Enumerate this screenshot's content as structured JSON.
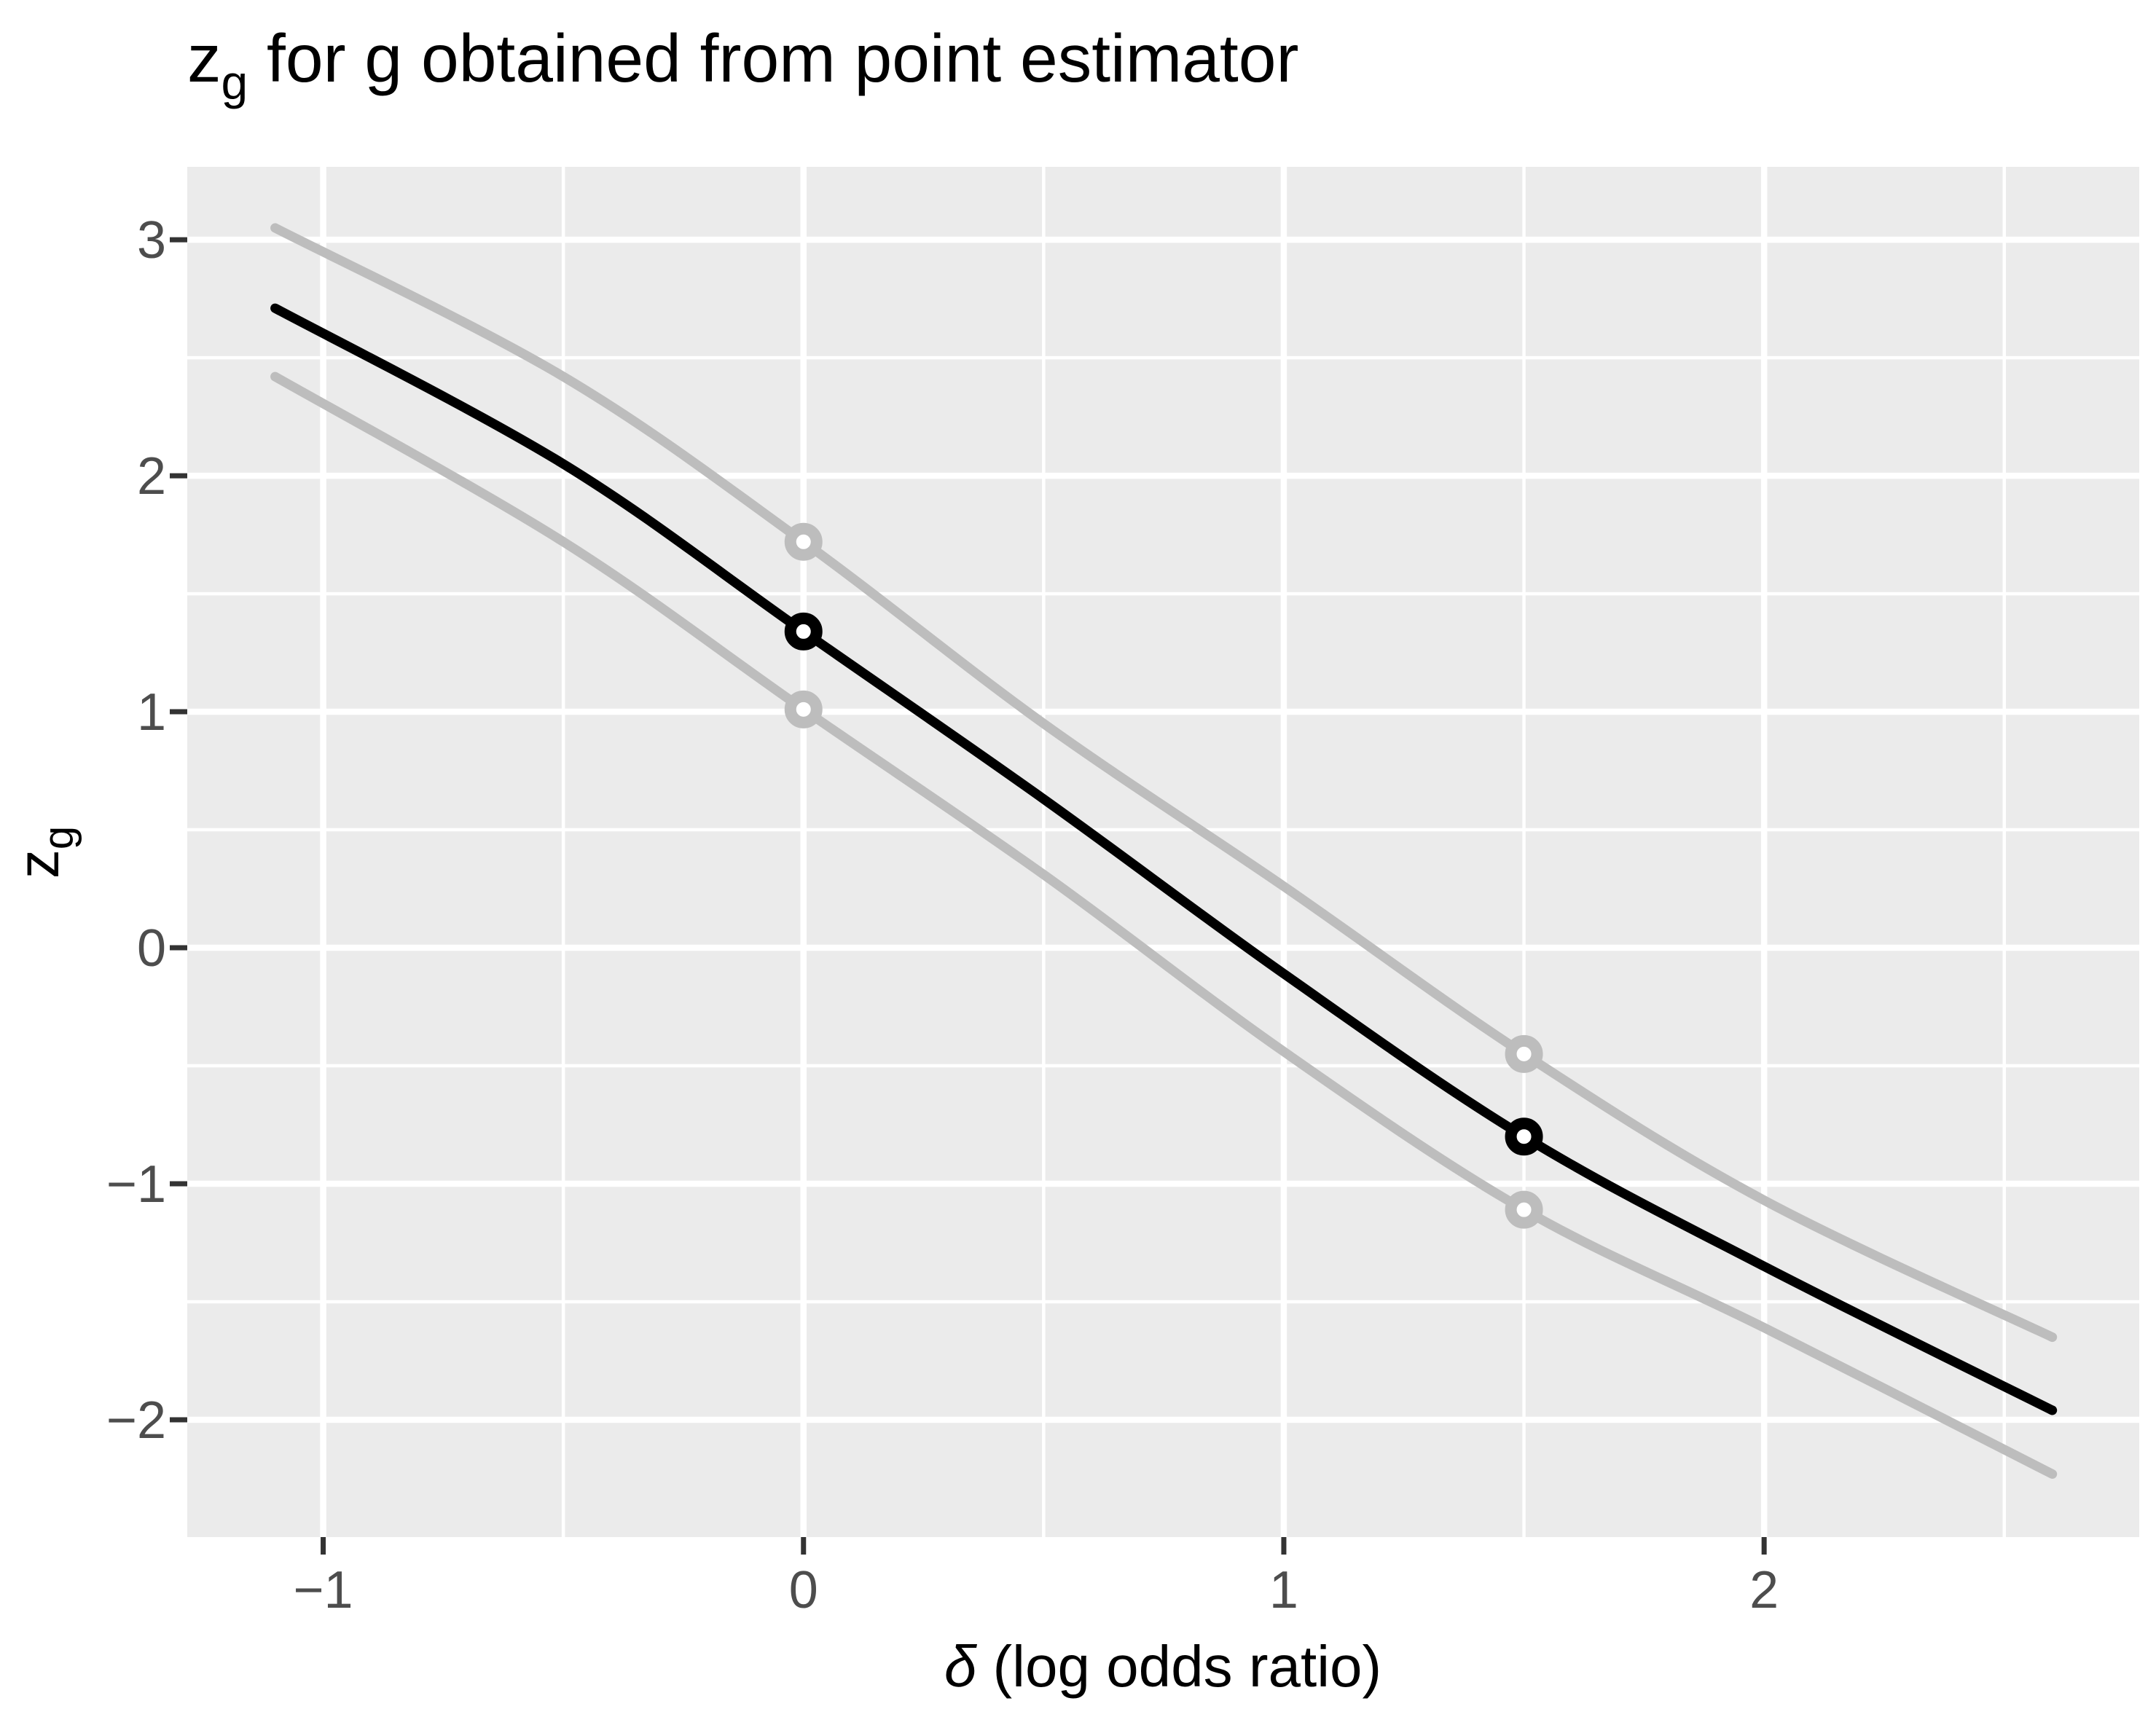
{
  "labels": {
    "title_base": "z",
    "title_sub": "g",
    "title_rest": " for g obtained from point estimator",
    "ylabel_base": "z",
    "ylabel_sub": "g",
    "xlabel_delta": "δ",
    "xlabel_rest": " (log odds ratio)"
  },
  "chart_data": {
    "type": "line",
    "title": "z_g for g obtained from point estimator",
    "xlabel": "δ (log odds ratio)",
    "ylabel": "z_g",
    "grid": true,
    "legend": "none",
    "xlim": [
      -1.283,
      2.781
    ],
    "ylim": [
      -2.497,
      3.309
    ],
    "x": [
      -1.1,
      -0.5,
      0,
      0.5,
      1,
      1.5,
      2,
      2.6
    ],
    "series": [
      {
        "name": "upper-band",
        "color": "#BDBDBD",
        "width": 13,
        "values": [
          3.05,
          2.42,
          1.72,
          0.95,
          0.26,
          -0.45,
          -1.07,
          -1.65
        ]
      },
      {
        "name": "lower-band",
        "color": "#BDBDBD",
        "width": 13,
        "values": [
          2.42,
          1.72,
          1.01,
          0.31,
          -0.44,
          -1.11,
          -1.61,
          -2.23
        ]
      },
      {
        "name": "estimate",
        "color": "#000000",
        "width": 13,
        "values": [
          2.71,
          2.05,
          1.34,
          0.63,
          -0.11,
          -0.8,
          -1.35,
          -1.96
        ]
      }
    ],
    "points": [
      {
        "x": 0,
        "y": 1.72,
        "series": "upper-band",
        "color": "#BDBDBD"
      },
      {
        "x": 0,
        "y": 1.01,
        "series": "lower-band",
        "color": "#BDBDBD"
      },
      {
        "x": 0,
        "y": 1.34,
        "series": "estimate",
        "color": "#000000"
      },
      {
        "x": 1.5,
        "y": -0.45,
        "series": "upper-band",
        "color": "#BDBDBD"
      },
      {
        "x": 1.5,
        "y": -1.11,
        "series": "lower-band",
        "color": "#BDBDBD"
      },
      {
        "x": 1.5,
        "y": -0.8,
        "series": "estimate",
        "color": "#000000"
      }
    ],
    "x_ticks": [
      {
        "v": -1,
        "label": "−1"
      },
      {
        "v": 0,
        "label": "0"
      },
      {
        "v": 1,
        "label": "1"
      },
      {
        "v": 2,
        "label": "2"
      }
    ],
    "y_ticks": [
      {
        "v": 3,
        "label": "3"
      },
      {
        "v": 2,
        "label": "2"
      },
      {
        "v": 1,
        "label": "1"
      },
      {
        "v": 0,
        "label": "0"
      },
      {
        "v": -1,
        "label": "−1"
      },
      {
        "v": -2,
        "label": "−2"
      }
    ],
    "x_minor": [
      -0.5,
      0.5,
      1.5,
      2.5
    ],
    "y_minor": [
      2.5,
      1.5,
      0.5,
      -0.5,
      -1.5
    ],
    "colors": {
      "panel_bg": "#EBEBEB",
      "grid": "#FFFFFF",
      "axis_text": "#4D4D4D",
      "tick_mark": "#333333",
      "title_text": "#000000",
      "band": "#BDBDBD",
      "main": "#000000"
    }
  }
}
